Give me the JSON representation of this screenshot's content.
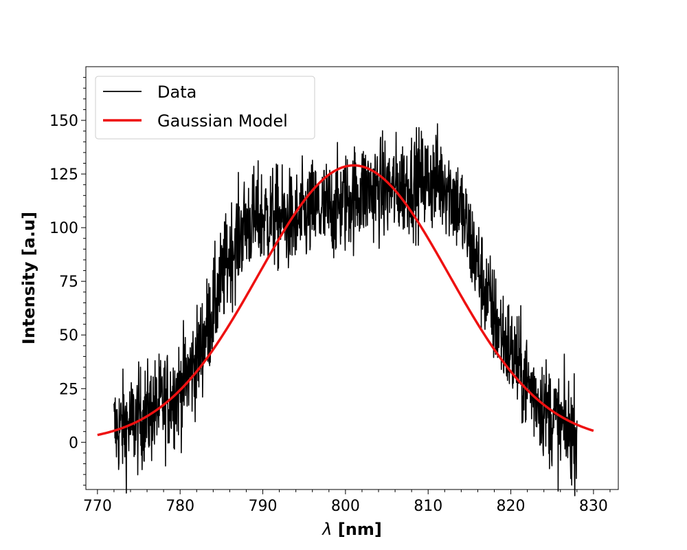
{
  "chart_data": {
    "type": "line",
    "title": "",
    "xlabel_symbol": "λ",
    "xlabel_text": " [nm]",
    "ylabel": "Intensity [a.u]",
    "xlim": [
      768.6,
      833.0
    ],
    "ylim": [
      -22,
      175
    ],
    "x_ticks": [
      770,
      780,
      790,
      800,
      810,
      820,
      830
    ],
    "x_tick_labels": [
      "770",
      "780",
      "790",
      "800",
      "810",
      "820",
      "830"
    ],
    "y_ticks": [
      0,
      25,
      50,
      75,
      100,
      125,
      150
    ],
    "y_tick_labels": [
      "0",
      "25",
      "50",
      "75",
      "100",
      "125",
      "150"
    ],
    "grid": false,
    "legend_position": "top-left",
    "series": [
      {
        "name": "Data",
        "color": "#000000",
        "x_range": [
          772,
          828
        ],
        "envelope_x": [
          772,
          774,
          776,
          778,
          780,
          782,
          784,
          786,
          788,
          790,
          792,
          794,
          796,
          798,
          800,
          802,
          804,
          806,
          808,
          810,
          812,
          814,
          816,
          818,
          820,
          822,
          824,
          826,
          828
        ],
        "envelope_y": [
          6,
          8,
          13,
          18,
          25,
          38,
          62,
          88,
          102,
          105,
          104,
          102,
          108,
          108,
          112,
          117,
          118,
          118,
          121,
          122,
          122,
          108,
          82,
          58,
          42,
          27,
          17,
          7,
          5
        ],
        "noise_amplitude": 12
      },
      {
        "name": "Gaussian Model",
        "color": "#ee1111",
        "model": "gaussian",
        "amplitude": 129,
        "center": 801,
        "sigma": 11.5,
        "x_range": [
          770,
          830
        ]
      }
    ]
  }
}
